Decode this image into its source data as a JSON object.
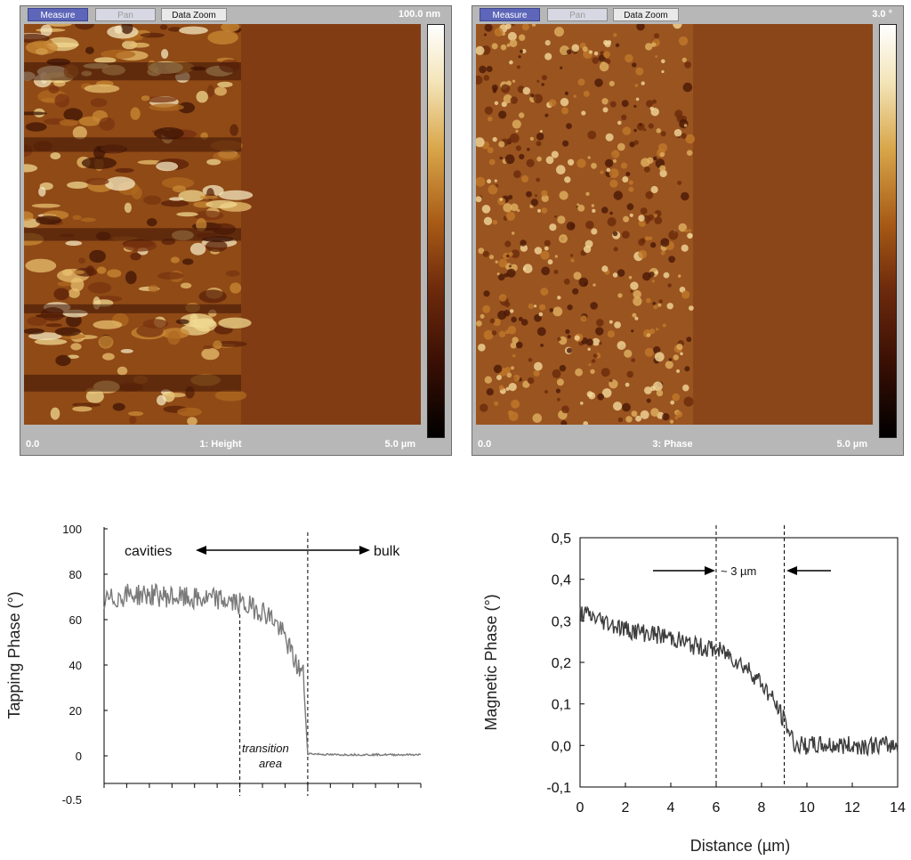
{
  "windows": [
    {
      "toolbar": {
        "measure": "Measure",
        "pan": "Pan",
        "data_zoom": "Data Zoom"
      },
      "scale_max": "100.0 nm",
      "x_start": "0.0",
      "channel": "1: Height",
      "x_end": "5.0 µm",
      "colors": {
        "frame": "#b7b7b7",
        "image_bulk": "#823c13",
        "colorbar": [
          "#ffffff",
          "#d9a64a",
          "#823c13",
          "#000000"
        ]
      }
    },
    {
      "toolbar": {
        "measure": "Measure",
        "pan": "Pan",
        "data_zoom": "Data Zoom"
      },
      "scale_max": "3.0 °",
      "x_start": "0.0",
      "channel": "3: Phase",
      "x_end": "5.0 µm",
      "colors": {
        "frame": "#b7b7b7",
        "image_bulk": "#8a4519",
        "colorbar": [
          "#ffffff",
          "#d9a64a",
          "#823c13",
          "#000000"
        ]
      }
    }
  ],
  "chart_data": [
    {
      "type": "line",
      "title": "",
      "xlabel": "",
      "ylabel": "Tapping Phase (°)",
      "xlim": [
        0,
        14
      ],
      "ylim": [
        -5,
        100
      ],
      "yticks": [
        "100",
        "80",
        "60",
        "40",
        "20",
        "0",
        "-0.5"
      ],
      "annotations": {
        "left": "cavities",
        "right": "bulk",
        "transition_1": "transition",
        "transition_2": "area"
      },
      "dashed_lines_x": [
        6,
        9
      ],
      "series": [
        {
          "color": "#7a7a7a",
          "x": [
            0,
            1,
            2,
            3,
            4,
            5,
            6,
            7,
            7.5,
            8,
            8.5,
            8.8,
            9,
            10,
            11,
            12,
            13,
            14
          ],
          "y": [
            68,
            71,
            71,
            70,
            69,
            69,
            67,
            64,
            60,
            52,
            40,
            36,
            1,
            0.5,
            0.5,
            0.5,
            0.5,
            0.5
          ]
        }
      ]
    },
    {
      "type": "line",
      "title": "",
      "xlabel": "Distance (µm)",
      "ylabel": "Magnetic Phase (°)",
      "xlim": [
        0,
        14
      ],
      "ylim": [
        -0.1,
        0.5
      ],
      "xticks": [
        "0",
        "2",
        "4",
        "6",
        "8",
        "10",
        "12",
        "14"
      ],
      "yticks": [
        "0,5",
        "0,4",
        "0,3",
        "0,2",
        "0,1",
        "0,0",
        "-0,1"
      ],
      "annotations": {
        "width": "~ 3 µm"
      },
      "dashed_lines_x": [
        6,
        9
      ],
      "series": [
        {
          "color": "#3c3c3c",
          "x": [
            0,
            1,
            2,
            3,
            4,
            5,
            6,
            6.5,
            7,
            7.5,
            8,
            8.5,
            9,
            9.5,
            10,
            11,
            12,
            13,
            14
          ],
          "y": [
            0.32,
            0.3,
            0.28,
            0.27,
            0.26,
            0.24,
            0.23,
            0.22,
            0.2,
            0.18,
            0.15,
            0.11,
            0.06,
            0.0,
            0.0,
            0.0,
            0.0,
            0.0,
            0.0
          ]
        }
      ]
    }
  ]
}
